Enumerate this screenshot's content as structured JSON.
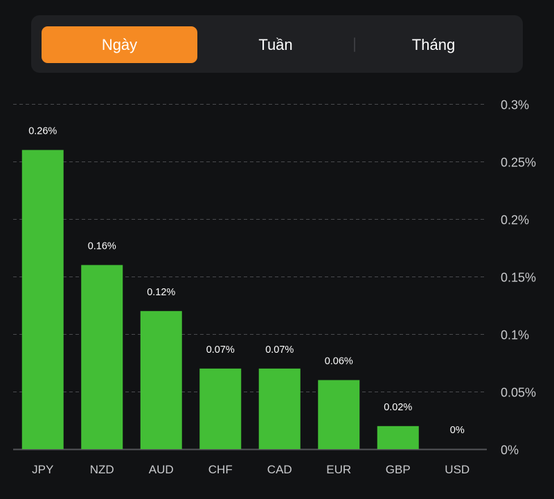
{
  "period_selector": {
    "tabs": [
      {
        "label": "Ngày",
        "active": true
      },
      {
        "label": "Tuần",
        "active": false
      },
      {
        "label": "Tháng",
        "active": false
      }
    ],
    "active_color": "#f58a23"
  },
  "chart_data": {
    "type": "bar",
    "title": "",
    "xlabel": "",
    "ylabel": "",
    "categories": [
      "JPY",
      "NZD",
      "AUD",
      "CHF",
      "CAD",
      "EUR",
      "GBP",
      "USD"
    ],
    "values": [
      0.26,
      0.16,
      0.12,
      0.07,
      0.07,
      0.06,
      0.02,
      0
    ],
    "value_labels": [
      "0.26%",
      "0.16%",
      "0.12%",
      "0.07%",
      "0.07%",
      "0.06%",
      "0.02%",
      "0%"
    ],
    "ylim": [
      0,
      0.3
    ],
    "yticks": [
      0,
      0.05,
      0.1,
      0.15,
      0.2,
      0.25,
      0.3
    ],
    "ytick_labels": [
      "0%",
      "0.05%",
      "0.1%",
      "0.15%",
      "0.2%",
      "0.25%",
      "0.3%"
    ],
    "y_axis_side": "right",
    "grid": true,
    "grid_style": "dashed",
    "bar_color": "#43be36",
    "legend": null
  }
}
